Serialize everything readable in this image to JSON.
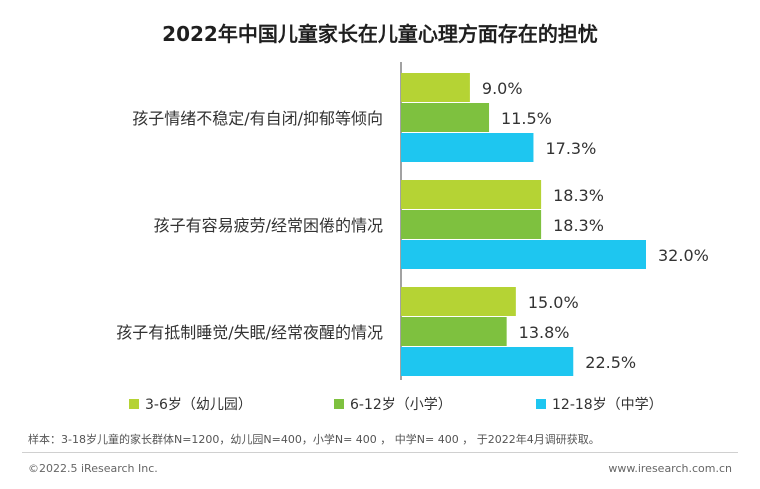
{
  "note": "样本：3-18岁儿童的家长群体N=1200，幼儿园N=400，小学N= 400 ， 中学N= 400 ， 于2022年4月调研获取。",
  "footer": {
    "copyright": "©2022.5 iResearch Inc.",
    "url": "www.iresearch.com.cn"
  },
  "chart_data": {
    "type": "bar",
    "orientation": "horizontal",
    "title": "2022年中国儿童家长在儿童心理方面存在的担忧",
    "categories": [
      "孩子情绪不稳定/有自闭/抑郁等倾向",
      "孩子有容易疲劳/经常困倦的情况",
      "孩子有抵制睡觉/失眠/经常夜醒的情况"
    ],
    "series": [
      {
        "name": "3-6岁（幼儿园）",
        "color": "#b5d334",
        "values": [
          9.0,
          18.3,
          15.0
        ]
      },
      {
        "name": "6-12岁（小学）",
        "color": "#7ec13f",
        "values": [
          11.5,
          18.3,
          13.8
        ]
      },
      {
        "name": "12-18岁（中学）",
        "color": "#1ec6f0",
        "values": [
          17.3,
          32.0,
          22.5
        ]
      }
    ],
    "value_suffix": "%",
    "xlim": [
      0,
      32
    ],
    "grid": false,
    "legend_position": "bottom"
  }
}
